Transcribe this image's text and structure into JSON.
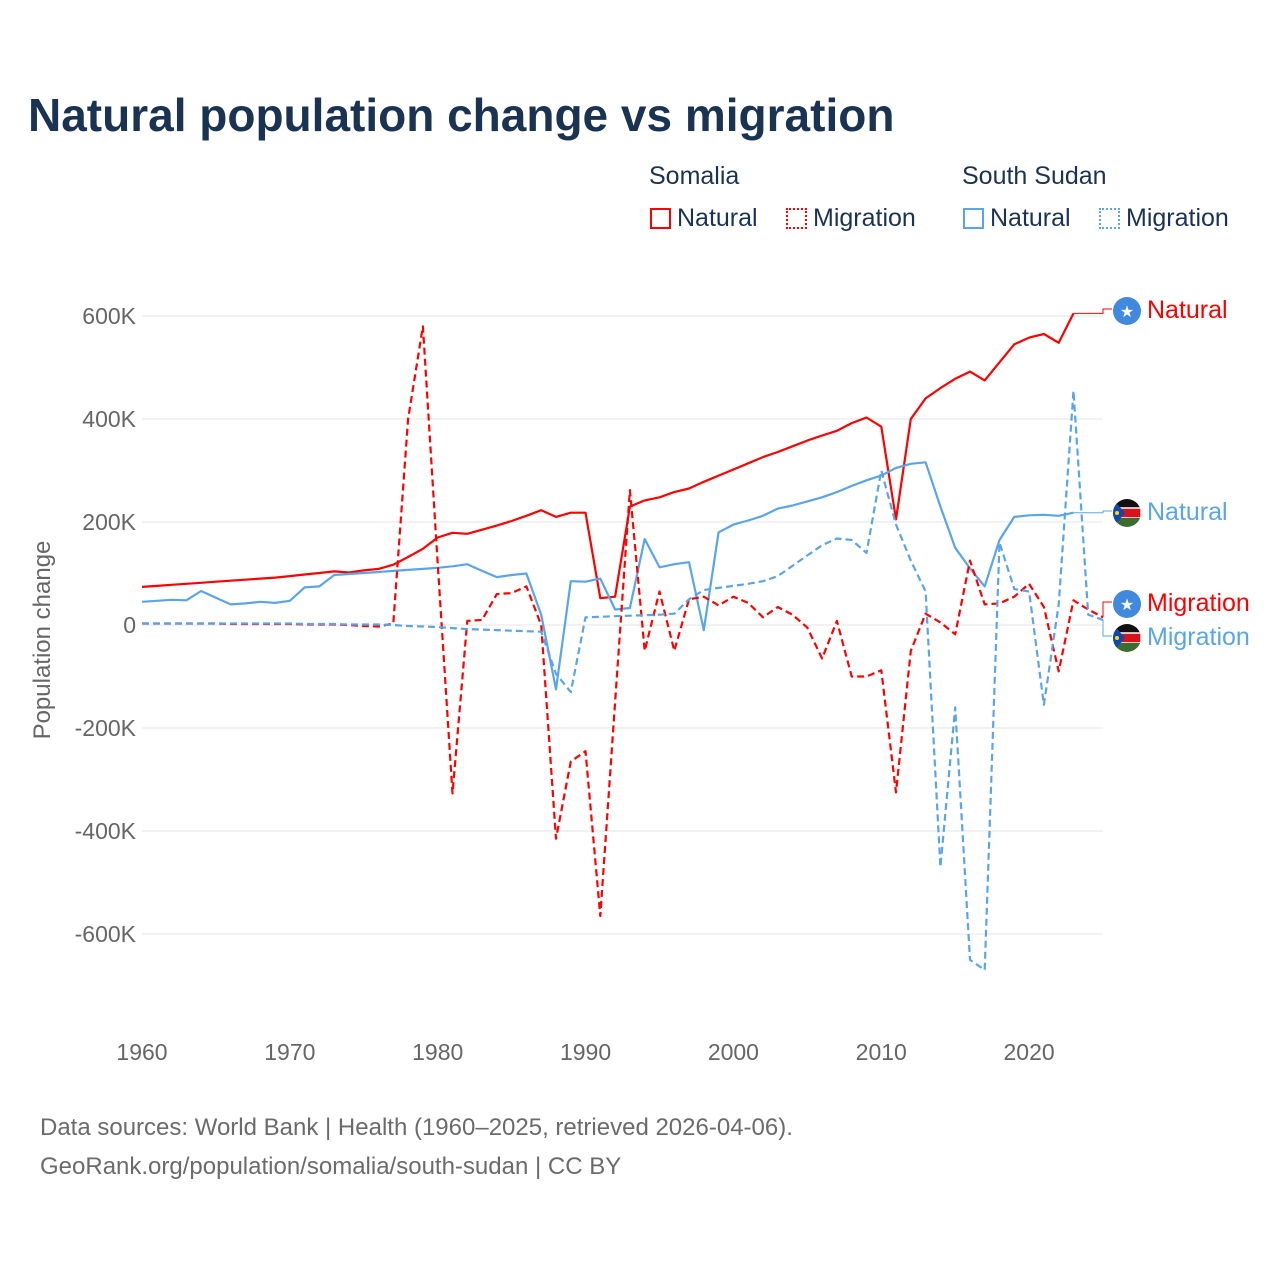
{
  "title": "Natural population change vs migration",
  "legend": {
    "groups": [
      {
        "name": "Somalia",
        "items": [
          "Natural",
          "Migration"
        ]
      },
      {
        "name": "South Sudan",
        "items": [
          "Natural",
          "Migration"
        ]
      }
    ]
  },
  "footer": {
    "line1": "Data sources: World Bank | Health (1960–2025, retrieved 2026-04-06).",
    "line2": "GeoRank.org/population/somalia/south-sudan | CC BY"
  },
  "colors": {
    "somalia": "#ff0000",
    "south_sudan": "#5aa5ea"
  },
  "chart_data": {
    "type": "line",
    "title": "Natural population change vs migration",
    "xlabel": "",
    "ylabel": "Population change",
    "xlim": [
      1960,
      2025
    ],
    "ylim": [
      -700,
      650
    ],
    "x_ticks": [
      "1960",
      "1970",
      "1980",
      "1990",
      "2000",
      "2010",
      "2020"
    ],
    "y_ticks": [
      {
        "v": 600,
        "l": "600K"
      },
      {
        "v": 400,
        "l": "400K"
      },
      {
        "v": 200,
        "l": "200K"
      },
      {
        "v": 0,
        "l": "0"
      },
      {
        "v": -200,
        "l": "-200K"
      },
      {
        "v": -400,
        "l": "-400K"
      },
      {
        "v": -600,
        "l": "-600K"
      }
    ],
    "units": "thousands",
    "grid": true,
    "series": [
      {
        "name": "Somalia Natural",
        "label": "Natural",
        "country": "somalia",
        "dash": false,
        "start": 1960,
        "values": [
          74,
          76,
          78,
          80,
          82,
          84,
          86,
          88,
          90,
          92,
          95,
          98,
          101,
          104,
          102,
          106,
          109,
          117,
          132,
          148,
          170,
          179,
          177,
          185,
          193,
          202,
          212,
          223,
          210,
          218,
          218,
          52,
          55,
          230,
          242,
          248,
          258,
          265,
          278,
          290,
          302,
          314,
          326,
          336,
          347,
          358,
          368,
          377,
          392,
          403,
          385,
          205,
          400,
          440,
          460,
          478,
          492,
          475,
          510,
          545,
          558,
          565,
          548,
          605
        ]
      },
      {
        "name": "South Sudan Natural",
        "label": "Natural",
        "country": "south_sudan",
        "dash": false,
        "start": 1960,
        "values": [
          45,
          47,
          49,
          48,
          66,
          53,
          40,
          42,
          45,
          43,
          47,
          73,
          75,
          97,
          99,
          101,
          103,
          105,
          107,
          109,
          111,
          114,
          118,
          105,
          93,
          97,
          100,
          20,
          -125,
          85,
          84,
          90,
          30,
          33,
          167,
          112,
          118,
          122,
          -10,
          180,
          195,
          203,
          212,
          226,
          232,
          240,
          248,
          258,
          270,
          281,
          290,
          305,
          313,
          316,
          230,
          150,
          110,
          75,
          165,
          210,
          213,
          214,
          212,
          218
        ]
      },
      {
        "name": "Somalia Migration",
        "label": "Migration",
        "country": "somalia",
        "dash": true,
        "start": 1960,
        "values": [
          3,
          3,
          3,
          3,
          3,
          3,
          2,
          2,
          2,
          2,
          2,
          1,
          1,
          1,
          0,
          -2,
          -3,
          3,
          400,
          580,
          120,
          -327,
          8,
          10,
          60,
          62,
          75,
          0,
          -415,
          -265,
          -245,
          -565,
          -150,
          262,
          -50,
          65,
          -50,
          50,
          55,
          38,
          55,
          43,
          15,
          35,
          20,
          -5,
          -65,
          8,
          -100,
          -100,
          -88,
          -325,
          -50,
          22,
          5,
          -18,
          125,
          40,
          42,
          55,
          80,
          35,
          -90,
          48,
          30,
          15
        ]
      },
      {
        "name": "South Sudan Migration",
        "label": "Migration",
        "country": "south_sudan",
        "dash": true,
        "start": 1960,
        "values": [
          3,
          3,
          3,
          3,
          3,
          3,
          3,
          3,
          3,
          3,
          3,
          2,
          2,
          2,
          1,
          1,
          1,
          0,
          -2,
          -3,
          -4,
          -6,
          -8,
          -9,
          -10,
          -11,
          -12,
          -13,
          -95,
          -130,
          15,
          16,
          17,
          18,
          19,
          20,
          22,
          50,
          68,
          72,
          76,
          80,
          85,
          95,
          115,
          135,
          155,
          168,
          165,
          140,
          300,
          195,
          125,
          65,
          -470,
          -160,
          -650,
          -670,
          160,
          70,
          65,
          -155,
          40,
          455,
          20,
          10
        ]
      }
    ]
  }
}
